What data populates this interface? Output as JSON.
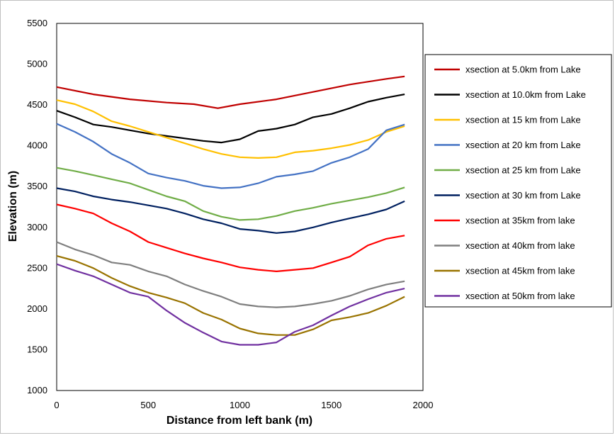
{
  "chart_data": {
    "type": "line",
    "xlabel": "Distance from left bank (m)",
    "ylabel": "Elevation (m)",
    "xlim": [
      0,
      2000
    ],
    "ylim": [
      1000,
      5500
    ],
    "xticks": [
      0,
      500,
      1000,
      1500,
      2000
    ],
    "yticks": [
      1000,
      1500,
      2000,
      2500,
      3000,
      3500,
      4000,
      4500,
      5000,
      5500
    ],
    "grid": false,
    "legend_position": "right",
    "series": [
      {
        "name": "xsection at 5.0km from Lake",
        "color": "#c00000",
        "x": [
          0,
          200,
          400,
          600,
          750,
          880,
          1000,
          1200,
          1400,
          1600,
          1800,
          1900
        ],
        "y": [
          4720,
          4630,
          4570,
          4530,
          4510,
          4460,
          4510,
          4570,
          4660,
          4750,
          4820,
          4850
        ]
      },
      {
        "name": "xsection at 10.0km from Lake",
        "color": "#000000",
        "x": [
          0,
          100,
          200,
          300,
          400,
          500,
          600,
          700,
          800,
          900,
          1000,
          1100,
          1200,
          1300,
          1400,
          1500,
          1600,
          1700,
          1800,
          1900
        ],
        "y": [
          4430,
          4350,
          4260,
          4230,
          4190,
          4150,
          4120,
          4090,
          4060,
          4040,
          4080,
          4180,
          4210,
          4260,
          4350,
          4390,
          4460,
          4540,
          4590,
          4630
        ]
      },
      {
        "name": "xsection at 15 km from Lake",
        "color": "#ffc000",
        "x": [
          0,
          100,
          200,
          300,
          400,
          500,
          600,
          700,
          800,
          900,
          1000,
          1100,
          1200,
          1300,
          1400,
          1500,
          1600,
          1700,
          1800,
          1900
        ],
        "y": [
          4560,
          4510,
          4420,
          4300,
          4240,
          4170,
          4100,
          4030,
          3960,
          3900,
          3860,
          3850,
          3860,
          3920,
          3940,
          3970,
          4010,
          4070,
          4170,
          4240
        ]
      },
      {
        "name": "xsection at 20 km from Lake",
        "color": "#4472c4",
        "x": [
          0,
          100,
          200,
          300,
          400,
          500,
          600,
          700,
          800,
          900,
          1000,
          1100,
          1200,
          1300,
          1400,
          1500,
          1600,
          1700,
          1800,
          1900
        ],
        "y": [
          4270,
          4170,
          4050,
          3900,
          3790,
          3660,
          3610,
          3570,
          3510,
          3480,
          3490,
          3540,
          3620,
          3650,
          3690,
          3790,
          3860,
          3960,
          4190,
          4260
        ]
      },
      {
        "name": "xsection at 25 km from Lake",
        "color": "#70ad47",
        "x": [
          0,
          100,
          200,
          300,
          400,
          500,
          600,
          700,
          800,
          900,
          1000,
          1100,
          1200,
          1300,
          1400,
          1500,
          1600,
          1700,
          1800,
          1900
        ],
        "y": [
          3730,
          3690,
          3640,
          3590,
          3540,
          3460,
          3380,
          3320,
          3200,
          3130,
          3090,
          3100,
          3140,
          3200,
          3240,
          3290,
          3330,
          3370,
          3420,
          3490
        ]
      },
      {
        "name": "xsection at 30 km from Lake",
        "color": "#002060",
        "x": [
          0,
          100,
          200,
          300,
          400,
          500,
          600,
          700,
          800,
          900,
          1000,
          1100,
          1200,
          1300,
          1400,
          1500,
          1600,
          1700,
          1800,
          1900
        ],
        "y": [
          3480,
          3440,
          3380,
          3340,
          3310,
          3270,
          3230,
          3170,
          3100,
          3050,
          2980,
          2960,
          2930,
          2950,
          3000,
          3060,
          3110,
          3160,
          3220,
          3320
        ]
      },
      {
        "name": "xsection at 35km from lake",
        "color": "#ff0000",
        "x": [
          0,
          100,
          200,
          300,
          400,
          500,
          600,
          700,
          800,
          900,
          1000,
          1100,
          1200,
          1300,
          1400,
          1500,
          1600,
          1700,
          1800,
          1900
        ],
        "y": [
          3280,
          3230,
          3170,
          3050,
          2950,
          2820,
          2750,
          2680,
          2620,
          2570,
          2510,
          2480,
          2460,
          2480,
          2500,
          2570,
          2640,
          2780,
          2860,
          2900
        ]
      },
      {
        "name": "xsection at 40km from lake",
        "color": "#7f7f7f",
        "x": [
          0,
          100,
          200,
          300,
          400,
          500,
          600,
          700,
          800,
          900,
          1000,
          1100,
          1200,
          1300,
          1400,
          1500,
          1600,
          1700,
          1800,
          1900
        ],
        "y": [
          2820,
          2730,
          2660,
          2570,
          2540,
          2460,
          2400,
          2300,
          2220,
          2150,
          2060,
          2030,
          2020,
          2030,
          2060,
          2100,
          2160,
          2240,
          2300,
          2340
        ]
      },
      {
        "name": "xsection at 45km from lake",
        "color": "#997300",
        "x": [
          0,
          100,
          200,
          300,
          400,
          500,
          600,
          700,
          800,
          900,
          1000,
          1100,
          1200,
          1300,
          1400,
          1500,
          1600,
          1700,
          1800,
          1900
        ],
        "y": [
          2650,
          2590,
          2500,
          2380,
          2280,
          2200,
          2140,
          2070,
          1950,
          1870,
          1760,
          1700,
          1680,
          1680,
          1750,
          1860,
          1900,
          1950,
          2040,
          2150
        ]
      },
      {
        "name": "xsection at 50km from lake",
        "color": "#7030a0",
        "x": [
          0,
          100,
          200,
          300,
          400,
          500,
          600,
          700,
          800,
          900,
          1000,
          1100,
          1200,
          1300,
          1400,
          1500,
          1600,
          1700,
          1800,
          1900
        ],
        "y": [
          2550,
          2470,
          2400,
          2300,
          2200,
          2150,
          1980,
          1830,
          1710,
          1600,
          1560,
          1560,
          1590,
          1720,
          1800,
          1920,
          2030,
          2120,
          2200,
          2250
        ]
      }
    ]
  }
}
